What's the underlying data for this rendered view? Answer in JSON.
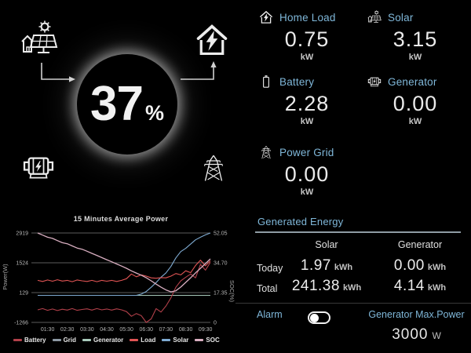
{
  "flow": {
    "soc_value": "37",
    "soc_unit": "%"
  },
  "icons": {
    "solar": "solar-panel-sun-icon",
    "home_load": "house-bolt-icon",
    "battery": "battery-icon",
    "generator": "motor-generator-icon",
    "power_grid": "transmission-tower-icon",
    "alarm_toggle": "toggle-switch-off"
  },
  "colors": {
    "accent_label": "#7fb7d9",
    "value_text": "#eaeaea",
    "background": "#000000"
  },
  "stats": {
    "items": [
      {
        "label": "Home Load",
        "value": "0.75",
        "unit": "kW"
      },
      {
        "label": "Solar",
        "value": "3.15",
        "unit": "kW"
      },
      {
        "label": "Battery",
        "value": "2.28",
        "unit": "kW"
      },
      {
        "label": "Generator",
        "value": "0.00",
        "unit": "kW"
      },
      {
        "label": "Power Grid",
        "value": "0.00",
        "unit": "kW"
      }
    ]
  },
  "chart_data": {
    "type": "line",
    "title": "15 Minutes Average Power",
    "ylabel_left": "Power(W)",
    "ylabel_right": "SOC(%)",
    "x_start_hour": 1.0,
    "x_step_hours": 0.25,
    "x_tick_hours": [
      1.5,
      2.5,
      3.5,
      4.5,
      5.5,
      6.5,
      7.5,
      8.5,
      9.5
    ],
    "x_tick_labels": [
      "01:30",
      "02:30",
      "03:30",
      "04:30",
      "05:30",
      "06:30",
      "07:30",
      "08:30",
      "09:30"
    ],
    "left_ticks": [
      {
        "label": "2919",
        "value": 2919
      },
      {
        "label": "1524",
        "value": 1524
      },
      {
        "label": "129",
        "value": 129
      },
      {
        "label": "-1266",
        "value": -1266
      }
    ],
    "right_ticks": [
      {
        "label": "52.05",
        "value": 52.05
      },
      {
        "label": "34.70",
        "value": 34.7
      },
      {
        "label": "17.35",
        "value": 17.35
      },
      {
        "label": "0",
        "value": 0
      }
    ],
    "grid": true,
    "legend_position": "bottom",
    "draw_order": [
      1,
      2,
      4,
      0,
      3,
      5
    ],
    "series": [
      {
        "name": "Battery",
        "axis": "left",
        "color": "#b2404a",
        "values": [
          -680,
          -620,
          -700,
          -640,
          -710,
          -650,
          -690,
          -620,
          -700,
          -660,
          -630,
          -690,
          -620,
          -680,
          -640,
          -690,
          -630,
          -680,
          -760,
          -980,
          -850,
          -950,
          -1266,
          -1100,
          -620,
          -780,
          -500,
          -120,
          380,
          680,
          850,
          1000,
          820,
          1450,
          1180,
          1550
        ]
      },
      {
        "name": "Grid",
        "axis": "left",
        "color": "#8d99a3",
        "values": [
          0,
          0,
          0,
          0,
          0,
          0,
          0,
          0,
          0,
          0,
          0,
          0,
          0,
          0,
          0,
          0,
          0,
          0,
          0,
          0,
          0,
          0,
          0,
          0,
          0,
          0,
          0,
          0,
          0,
          0,
          0,
          0,
          0,
          0,
          0,
          0
        ]
      },
      {
        "name": "Generator",
        "axis": "left",
        "color": "#a8cabb",
        "values": [
          0,
          0,
          0,
          0,
          0,
          0,
          0,
          0,
          0,
          0,
          0,
          0,
          0,
          0,
          0,
          0,
          0,
          0,
          0,
          0,
          0,
          0,
          0,
          0,
          0,
          0,
          0,
          0,
          0,
          0,
          0,
          0,
          0,
          0,
          0,
          0
        ]
      },
      {
        "name": "Load",
        "axis": "left",
        "color": "#e05454",
        "values": [
          700,
          650,
          720,
          660,
          730,
          670,
          700,
          640,
          720,
          680,
          650,
          700,
          640,
          700,
          660,
          700,
          650,
          700,
          780,
          1000,
          870,
          960,
          900,
          820,
          800,
          830,
          820,
          900,
          1020,
          960,
          1150,
          1060,
          1400,
          1650,
          1380,
          1620
        ]
      },
      {
        "name": "Solar",
        "axis": "left",
        "color": "#7fabd2",
        "values": [
          0,
          0,
          0,
          0,
          0,
          0,
          0,
          0,
          0,
          0,
          0,
          0,
          0,
          0,
          0,
          0,
          0,
          0,
          0,
          0,
          0,
          60,
          180,
          380,
          600,
          850,
          1050,
          1350,
          1750,
          2050,
          2200,
          2400,
          2600,
          2720,
          2830,
          2919
        ]
      },
      {
        "name": "SOC",
        "axis": "right",
        "color": "#d9afc1",
        "values": [
          52.05,
          50.8,
          49.6,
          48.9,
          47.6,
          46.4,
          45.8,
          44.5,
          43.3,
          42.6,
          41.4,
          40.2,
          39.0,
          37.7,
          36.5,
          35.3,
          34.0,
          32.8,
          31.5,
          30.0,
          28.7,
          27.5,
          26.0,
          24.2,
          22.3,
          20.5,
          18.9,
          17.8,
          18.4,
          20.6,
          23.3,
          26.0,
          28.8,
          31.5,
          34.2,
          37.0
        ]
      }
    ]
  },
  "energy": {
    "title": "Generated Energy",
    "columns": [
      "Solar",
      "Generator"
    ],
    "rows": [
      {
        "label": "Today",
        "values": [
          {
            "value": "1.97",
            "unit": "kWh"
          },
          {
            "value": "0.00",
            "unit": "kWh"
          }
        ]
      },
      {
        "label": "Total",
        "values": [
          {
            "value": "241.38",
            "unit": "kWh"
          },
          {
            "value": "4.14",
            "unit": "kWh"
          }
        ]
      }
    ],
    "alarm_label": "Alarm",
    "alarm_on": false,
    "max_power_label": "Generator Max.Power",
    "max_power_value": "3000",
    "max_power_unit": "W"
  }
}
